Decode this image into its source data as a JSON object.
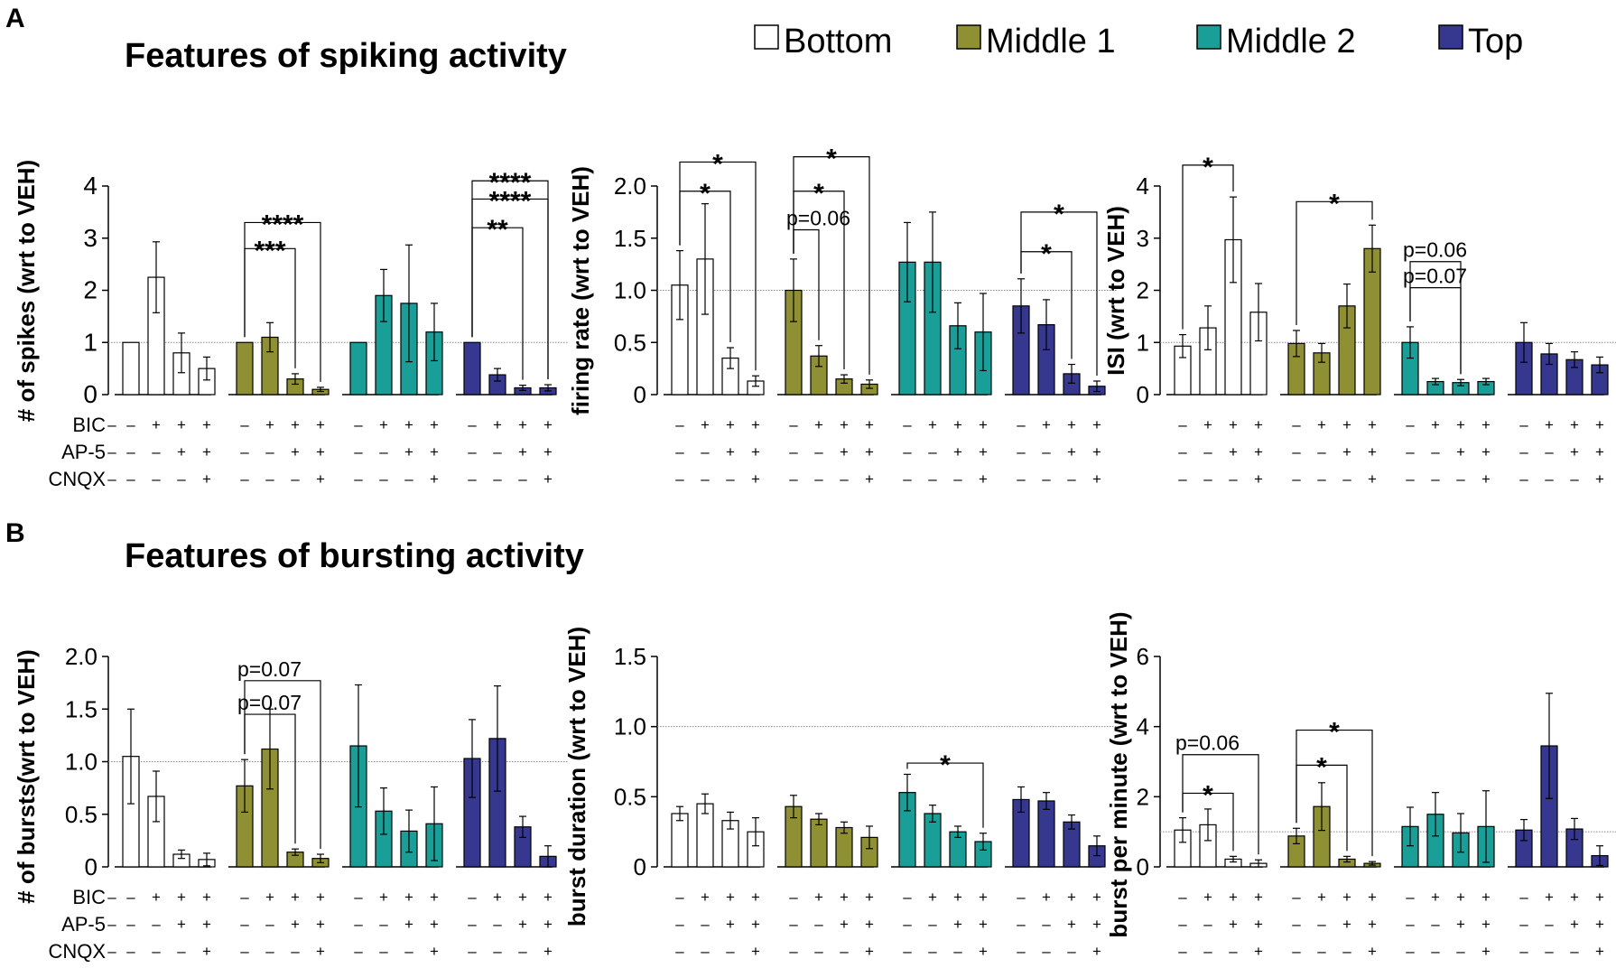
{
  "panels": {
    "a": "A",
    "b": "B"
  },
  "titles": {
    "spiking": "Features of spiking activity",
    "bursting": "Features of bursting activity"
  },
  "legend": [
    {
      "label": "Bottom",
      "color": "#ffffff"
    },
    {
      "label": "Middle 1",
      "color": "#8f8f34"
    },
    {
      "label": "Middle 2",
      "color": "#1a9e98"
    },
    {
      "label": "Top",
      "color": "#36378f"
    }
  ],
  "row_labels": [
    "BIC",
    "AP-5",
    "CNQX"
  ],
  "sign_pattern": [
    [
      "–",
      "+",
      "+",
      "+"
    ],
    [
      "–",
      "–",
      "+",
      "+"
    ],
    [
      "–",
      "–",
      "–",
      "+"
    ]
  ],
  "chart_data": [
    {
      "type": "bar",
      "id": "spikes",
      "title": "Features of spiking activity",
      "ylabel": "# of spikes (wrt to VEH)",
      "ylim": [
        0,
        4
      ],
      "yticks": [
        0,
        1,
        2,
        3,
        4
      ],
      "ytick_labels": [
        "0",
        "1",
        "2",
        "3",
        "4"
      ],
      "reference_line": 1,
      "groups": [
        "Bottom",
        "Middle 1",
        "Middle 2",
        "Top"
      ],
      "conditions": [
        "VEH",
        "BIC",
        "BIC+AP-5",
        "BIC+AP-5+CNQX"
      ],
      "series": [
        {
          "name": "Bottom",
          "values": [
            1.0,
            2.25,
            0.8,
            0.5
          ],
          "errors": [
            0,
            0.68,
            0.38,
            0.22
          ]
        },
        {
          "name": "Middle 1",
          "values": [
            1.0,
            1.1,
            0.3,
            0.1
          ],
          "errors": [
            0,
            0.28,
            0.1,
            0.04
          ]
        },
        {
          "name": "Middle 2",
          "values": [
            1.0,
            1.9,
            1.75,
            1.2
          ],
          "errors": [
            0,
            0.5,
            1.12,
            0.55
          ]
        },
        {
          "name": "Top",
          "values": [
            1.0,
            0.38,
            0.13,
            0.13
          ],
          "errors": [
            0,
            0.12,
            0.05,
            0.06
          ]
        }
      ],
      "brackets": [
        {
          "group": 1,
          "from": 0,
          "to": 2,
          "level": 2.8,
          "label": "***",
          "star": true
        },
        {
          "group": 1,
          "from": 0,
          "to": 3,
          "level": 3.3,
          "label": "****",
          "star": true
        },
        {
          "group": 3,
          "from": 0,
          "to": 2,
          "level": 3.2,
          "label": "**",
          "star": true
        },
        {
          "group": 3,
          "from": 0,
          "to": 3,
          "level": 3.75,
          "label": "****",
          "star": true
        },
        {
          "group": 3,
          "from": 0,
          "to": 3,
          "level": 4.1,
          "label": "****",
          "star": true
        }
      ]
    },
    {
      "type": "bar",
      "id": "firing",
      "ylabel": "firing rate (wrt to VEH)",
      "ylim": [
        0,
        2.0
      ],
      "yticks": [
        0,
        0.5,
        1.0,
        1.5,
        2.0
      ],
      "ytick_labels": [
        "0",
        "0.5",
        "1.0",
        "1.5",
        "2.0"
      ],
      "reference_line": 1.0,
      "groups": [
        "Bottom",
        "Middle 1",
        "Middle 2",
        "Top"
      ],
      "conditions": [
        "VEH",
        "BIC",
        "BIC+AP-5",
        "BIC+AP-5+CNQX"
      ],
      "series": [
        {
          "name": "Bottom",
          "values": [
            1.05,
            1.3,
            0.35,
            0.13
          ],
          "errors": [
            0.33,
            0.53,
            0.1,
            0.05
          ]
        },
        {
          "name": "Middle 1",
          "values": [
            1.0,
            0.37,
            0.15,
            0.1
          ],
          "errors": [
            0.3,
            0.1,
            0.04,
            0.04
          ]
        },
        {
          "name": "Middle 2",
          "values": [
            1.27,
            1.27,
            0.66,
            0.6
          ],
          "errors": [
            0.38,
            0.48,
            0.22,
            0.37
          ]
        },
        {
          "name": "Top",
          "values": [
            0.85,
            0.67,
            0.2,
            0.08
          ],
          "errors": [
            0.26,
            0.24,
            0.09,
            0.05
          ]
        }
      ],
      "brackets": [
        {
          "group": 0,
          "from": 0,
          "to": 2,
          "level": 1.95,
          "label": "*",
          "star": true
        },
        {
          "group": 0,
          "from": 0,
          "to": 3,
          "level": 2.23,
          "label": "*",
          "star": true
        },
        {
          "group": 1,
          "from": 0,
          "to": 2,
          "level": 1.95,
          "label": "*",
          "star": true
        },
        {
          "group": 1,
          "from": 0,
          "to": 3,
          "level": 2.28,
          "label": "*",
          "star": true
        },
        {
          "group": 1,
          "from": 0,
          "to": 1,
          "level": 1.58,
          "label": "p=0.06",
          "star": false
        },
        {
          "group": 3,
          "from": 0,
          "to": 2,
          "level": 1.37,
          "label": "*",
          "star": true
        },
        {
          "group": 3,
          "from": 0,
          "to": 3,
          "level": 1.75,
          "label": "*",
          "star": true
        }
      ]
    },
    {
      "type": "bar",
      "id": "isi",
      "ylabel": "ISI (wrt to VEH)",
      "ylim": [
        0,
        4
      ],
      "yticks": [
        0,
        1,
        2,
        3,
        4
      ],
      "ytick_labels": [
        "0",
        "1",
        "2",
        "3",
        "4"
      ],
      "reference_line": 1,
      "groups": [
        "Bottom",
        "Middle 1",
        "Middle 2",
        "Top"
      ],
      "conditions": [
        "VEH",
        "BIC",
        "BIC+AP-5",
        "BIC+AP-5+CNQX"
      ],
      "series": [
        {
          "name": "Bottom",
          "values": [
            0.93,
            1.28,
            2.97,
            1.58
          ],
          "errors": [
            0.22,
            0.42,
            0.82,
            0.55
          ]
        },
        {
          "name": "Middle 1",
          "values": [
            0.98,
            0.8,
            1.7,
            2.8
          ],
          "errors": [
            0.25,
            0.18,
            0.42,
            0.45
          ]
        },
        {
          "name": "Middle 2",
          "values": [
            1.0,
            0.25,
            0.23,
            0.25
          ],
          "errors": [
            0.3,
            0.06,
            0.06,
            0.06
          ]
        },
        {
          "name": "Top",
          "values": [
            1.0,
            0.78,
            0.67,
            0.57
          ],
          "errors": [
            0.38,
            0.2,
            0.15,
            0.15
          ]
        }
      ],
      "brackets": [
        {
          "group": 0,
          "from": 0,
          "to": 2,
          "level": 4.4,
          "label": "*",
          "star": true
        },
        {
          "group": 1,
          "from": 0,
          "to": 3,
          "level": 3.7,
          "label": "*",
          "star": true
        },
        {
          "group": 2,
          "from": 0,
          "to": 2,
          "level": 2.05,
          "label": "p=0.07",
          "star": false
        },
        {
          "group": 2,
          "from": 0,
          "to": 2,
          "level": 2.55,
          "label": "p=0.06",
          "star": false
        }
      ]
    },
    {
      "type": "bar",
      "id": "bursts",
      "title": "Features of bursting activity",
      "ylabel": "# of bursts(wrt to VEH)",
      "ylim": [
        0,
        2.0
      ],
      "yticks": [
        0,
        0.5,
        1.0,
        1.5,
        2.0
      ],
      "ytick_labels": [
        "0",
        "0.5",
        "1.0",
        "1.5",
        "2.0"
      ],
      "reference_line": 1.0,
      "groups": [
        "Bottom",
        "Middle 1",
        "Middle 2",
        "Top"
      ],
      "conditions": [
        "VEH",
        "BIC",
        "BIC+AP-5",
        "BIC+AP-5+CNQX"
      ],
      "series": [
        {
          "name": "Bottom",
          "values": [
            1.05,
            0.67,
            0.12,
            0.07
          ],
          "errors": [
            0.45,
            0.24,
            0.04,
            0.06
          ]
        },
        {
          "name": "Middle 1",
          "values": [
            0.77,
            1.12,
            0.14,
            0.08
          ],
          "errors": [
            0.25,
            0.38,
            0.03,
            0.04
          ]
        },
        {
          "name": "Middle 2",
          "values": [
            1.15,
            0.53,
            0.34,
            0.41
          ],
          "errors": [
            0.58,
            0.22,
            0.2,
            0.35
          ]
        },
        {
          "name": "Top",
          "values": [
            1.03,
            1.22,
            0.38,
            0.1
          ],
          "errors": [
            0.37,
            0.5,
            0.1,
            0.1
          ]
        }
      ],
      "brackets": [
        {
          "group": 1,
          "from": 0,
          "to": 2,
          "level": 1.45,
          "label": "p=0.07",
          "star": false
        },
        {
          "group": 1,
          "from": 0,
          "to": 3,
          "level": 1.77,
          "label": "p=0.07",
          "star": false
        }
      ]
    },
    {
      "type": "bar",
      "id": "duration",
      "ylabel": "burst duration (wrt to VEH)",
      "ylim": [
        0,
        1.5
      ],
      "yticks": [
        0,
        0.5,
        1.0,
        1.5
      ],
      "ytick_labels": [
        "0",
        "0.5",
        "1.0",
        "1.5"
      ],
      "reference_line": 1.0,
      "groups": [
        "Bottom",
        "Middle 1",
        "Middle 2",
        "Top"
      ],
      "conditions": [
        "VEH",
        "BIC",
        "BIC+AP-5",
        "BIC+AP-5+CNQX"
      ],
      "series": [
        {
          "name": "Bottom",
          "values": [
            0.38,
            0.45,
            0.33,
            0.25
          ],
          "errors": [
            0.05,
            0.07,
            0.06,
            0.1
          ]
        },
        {
          "name": "Middle 1",
          "values": [
            0.43,
            0.34,
            0.28,
            0.21
          ],
          "errors": [
            0.08,
            0.04,
            0.04,
            0.08
          ]
        },
        {
          "name": "Middle 2",
          "values": [
            0.53,
            0.38,
            0.25,
            0.18
          ],
          "errors": [
            0.13,
            0.06,
            0.04,
            0.06
          ]
        },
        {
          "name": "Top",
          "values": [
            0.48,
            0.47,
            0.32,
            0.15
          ],
          "errors": [
            0.09,
            0.06,
            0.05,
            0.07
          ]
        }
      ],
      "brackets": [
        {
          "group": 2,
          "from": 0,
          "to": 3,
          "level": 0.74,
          "label": "*",
          "star": true
        }
      ]
    },
    {
      "type": "bar",
      "id": "bpm",
      "ylabel": "burst per minute (wrt to VEH)",
      "ylim": [
        0,
        6
      ],
      "yticks": [
        0,
        2,
        4,
        6
      ],
      "ytick_labels": [
        "0",
        "2",
        "4",
        "6"
      ],
      "reference_line": 1,
      "groups": [
        "Bottom",
        "Middle 1",
        "Middle 2",
        "Top"
      ],
      "conditions": [
        "VEH",
        "BIC",
        "BIC+AP-5",
        "BIC+AP-5+CNQX"
      ],
      "series": [
        {
          "name": "Bottom",
          "values": [
            1.05,
            1.2,
            0.22,
            0.1
          ],
          "errors": [
            0.35,
            0.45,
            0.08,
            0.1
          ]
        },
        {
          "name": "Middle 1",
          "values": [
            0.88,
            1.72,
            0.22,
            0.1
          ],
          "errors": [
            0.22,
            0.68,
            0.08,
            0.05
          ]
        },
        {
          "name": "Middle 2",
          "values": [
            1.15,
            1.5,
            0.97,
            1.15
          ],
          "errors": [
            0.55,
            0.62,
            0.55,
            1.02
          ]
        },
        {
          "name": "Top",
          "values": [
            1.05,
            3.45,
            1.08,
            0.32
          ],
          "errors": [
            0.3,
            1.5,
            0.3,
            0.28
          ]
        }
      ],
      "brackets": [
        {
          "group": 0,
          "from": 0,
          "to": 2,
          "level": 2.1,
          "label": "*",
          "star": true
        },
        {
          "group": 0,
          "from": 0,
          "to": 3,
          "level": 3.2,
          "label": "p=0.06",
          "star": false
        },
        {
          "group": 1,
          "from": 0,
          "to": 2,
          "level": 2.9,
          "label": "*",
          "star": true
        },
        {
          "group": 1,
          "from": 0,
          "to": 3,
          "level": 3.9,
          "label": "*",
          "star": true
        }
      ]
    }
  ]
}
